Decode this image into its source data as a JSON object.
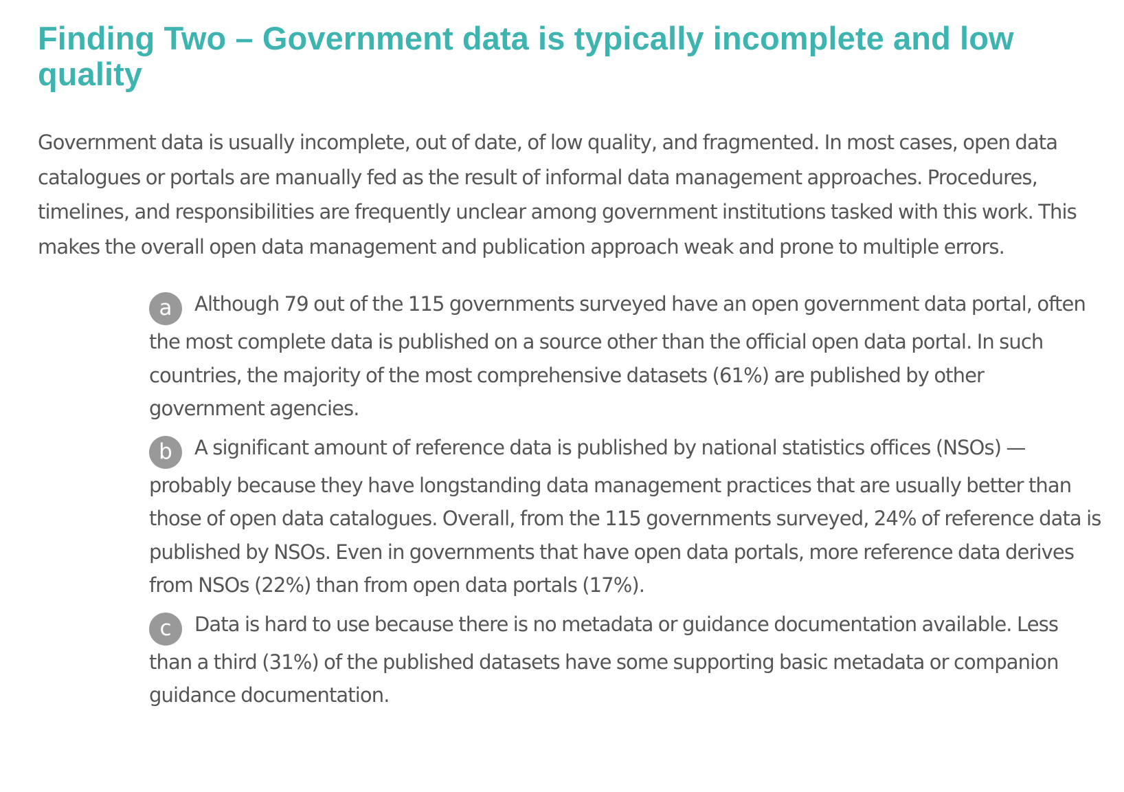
{
  "heading": "Finding Two – Government data is typically incomplete and low quality",
  "intro": "Government data is usually incomplete, out of date, of low quality, and fragmented. In most cases, open data catalogues or portals are manually fed as the result of informal data management approaches. Procedures, timelines, and responsibilities are frequently unclear among government institutions tasked with this work. This makes the overall open data management and publication approach weak and prone to multiple errors.",
  "findings": [
    {
      "marker": "a",
      "text": "Although 79 out of the 115 governments surveyed have an open government data portal, often the most complete data is published on a source other than the official open data portal. In such countries, the majority of the most comprehensive datasets (61%) are published by other government agencies."
    },
    {
      "marker": "b",
      "text": "A significant amount of reference data is published by national statistics offices (NSOs) — probably because they have longstanding data management practices that are usually better than those of open data catalogues. Overall, from the 115 governments surveyed, 24% of reference data is published by NSOs. Even in governments that have open data portals, more reference data derives from NSOs (22%) than from open data portals (17%)."
    },
    {
      "marker": "c",
      "text": "Data is hard to use because there is no metadata or guidance documentation available. Less than a third (31%) of the published datasets have some supporting basic metadata or companion guidance documentation."
    }
  ],
  "colors": {
    "heading": "#3db4b0",
    "body_text": "#555555",
    "badge": "#999999"
  }
}
